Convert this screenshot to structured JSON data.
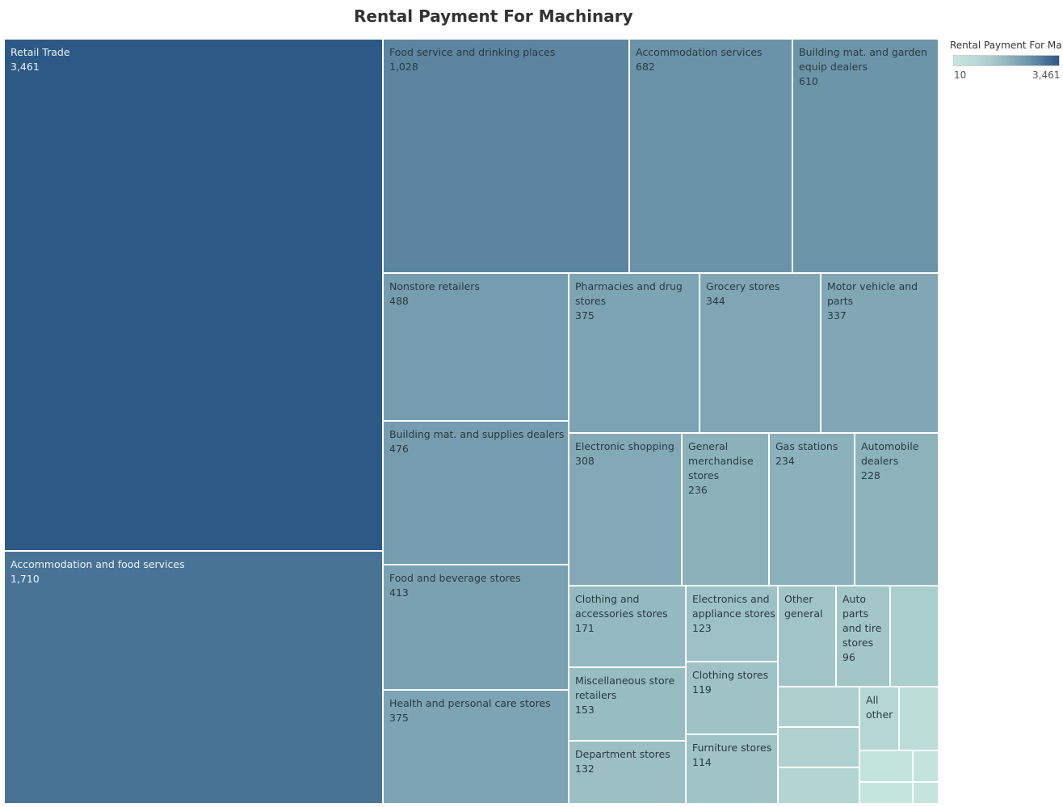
{
  "chart_data": {
    "type": "treemap",
    "title": "Rental Payment For Machinary",
    "measure": "Rental Payment For Machinary",
    "legend": {
      "title": "Rental Payment For Ma..",
      "min_label": "10",
      "max_label": "3,461",
      "min": 10,
      "max": 3461,
      "placement": "top-right",
      "color_low": "#c4e5dc",
      "color_high": "#2c5985"
    },
    "items": [
      {
        "name": "Retail Trade",
        "value": 3461,
        "label": "3,461"
      },
      {
        "name": "Accommodation and food services",
        "value": 1710,
        "label": "1,710"
      },
      {
        "name": "Food service and drinking places",
        "value": 1028,
        "label": "1,028"
      },
      {
        "name": "Accommodation services",
        "value": 682,
        "label": "682"
      },
      {
        "name": "Building mat. and garden\nequip dealers",
        "value": 610,
        "label": "610"
      },
      {
        "name": "Nonstore retailers",
        "value": 488,
        "label": "488"
      },
      {
        "name": "Building mat. and supplies dealers",
        "value": 476,
        "label": "476"
      },
      {
        "name": "Food and beverage stores",
        "value": 413,
        "label": "413"
      },
      {
        "name": "Health and personal care stores",
        "value": 375,
        "label": "375"
      },
      {
        "name": "Pharmacies and drug\nstores",
        "value": 375,
        "label": "375"
      },
      {
        "name": "Grocery stores",
        "value": 344,
        "label": "344"
      },
      {
        "name": "Motor vehicle and\nparts",
        "value": 337,
        "label": "337"
      },
      {
        "name": "Electronic shopping",
        "value": 308,
        "label": "308"
      },
      {
        "name": "General\nmerchandise\nstores",
        "value": 236,
        "label": "236"
      },
      {
        "name": "Gas stations",
        "value": 234,
        "label": "234"
      },
      {
        "name": "Automobile\ndealers",
        "value": 228,
        "label": "228"
      },
      {
        "name": "Clothing and\naccessories stores",
        "value": 171,
        "label": "171"
      },
      {
        "name": "Miscellaneous store\nretailers",
        "value": 153,
        "label": "153"
      },
      {
        "name": "Department stores",
        "value": 132,
        "label": "132"
      },
      {
        "name": "Electronics and\nappliance stores",
        "value": 123,
        "label": "123"
      },
      {
        "name": "Clothing stores",
        "value": 119,
        "label": "119"
      },
      {
        "name": "Furniture stores",
        "value": 114,
        "label": "114"
      },
      {
        "name": "Other\ngeneral",
        "value": 105,
        "label": ""
      },
      {
        "name": "Auto\nparts\nand tire\nstores",
        "value": 96,
        "label": "96"
      },
      {
        "name": "All\nother",
        "value": 40,
        "label": ""
      },
      {
        "name": "",
        "value": 70,
        "label": ""
      },
      {
        "name": "",
        "value": 60,
        "label": ""
      },
      {
        "name": "",
        "value": 55,
        "label": ""
      },
      {
        "name": "",
        "value": 45,
        "label": ""
      },
      {
        "name": "",
        "value": 28,
        "label": ""
      },
      {
        "name": "",
        "value": 16,
        "label": ""
      },
      {
        "name": "",
        "value": 12,
        "label": ""
      },
      {
        "name": "",
        "value": 10,
        "label": ""
      }
    ]
  }
}
